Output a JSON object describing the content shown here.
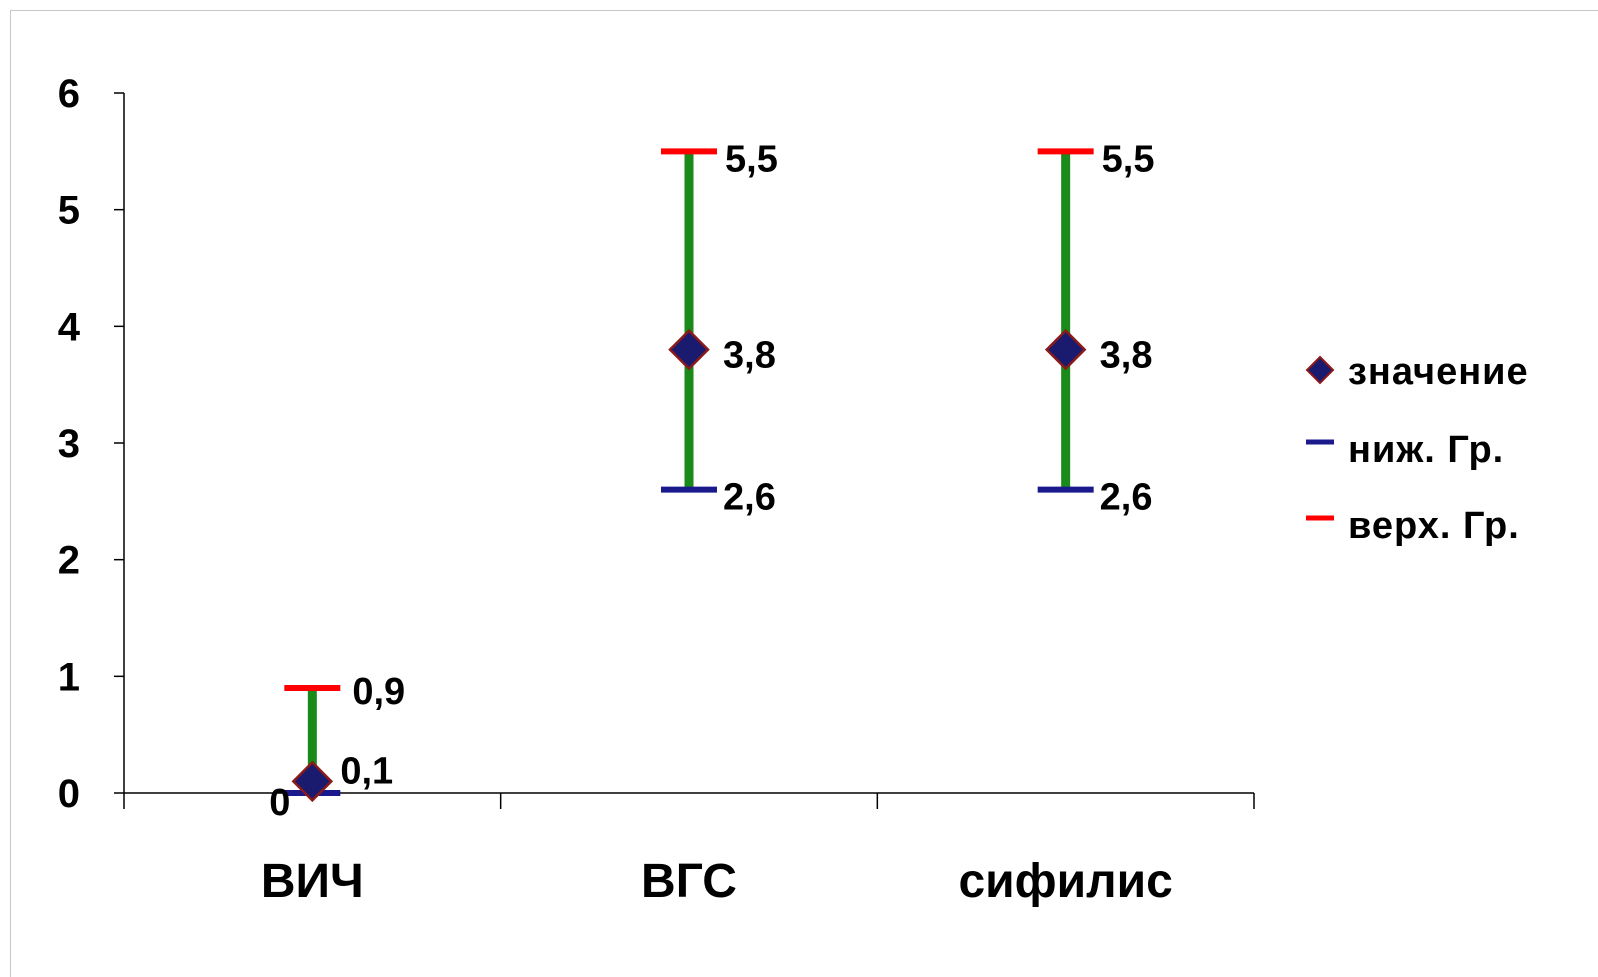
{
  "chart_data": {
    "type": "scatter",
    "categories": [
      "ВИЧ",
      "ВГС",
      "сифилис"
    ],
    "ylim": [
      0,
      6
    ],
    "y_ticks": [
      "0",
      "1",
      "2",
      "3",
      "4",
      "5",
      "6"
    ],
    "grid": false,
    "legend_placement": "right",
    "series": [
      {
        "name": "значение",
        "values": [
          0.1,
          3.8,
          3.8
        ],
        "labels": [
          "0,1",
          "3,8",
          "3,8"
        ],
        "marker": "diamond",
        "color": "#1a1a6e",
        "edge_color": "#8b1a1a"
      },
      {
        "name": "ниж. Гр.",
        "values": [
          0,
          2.6,
          2.6
        ],
        "labels": [
          "0",
          "2,6",
          "2,6"
        ],
        "marker": "dash",
        "color": "#1a1a8c"
      },
      {
        "name": "верх. Гр.",
        "values": [
          0.9,
          5.5,
          5.5
        ],
        "labels": [
          "0,9",
          "5,5",
          "5,5"
        ],
        "marker": "dash",
        "color": "#ff0000"
      }
    ],
    "range_line_color": "#1a8a1a"
  }
}
